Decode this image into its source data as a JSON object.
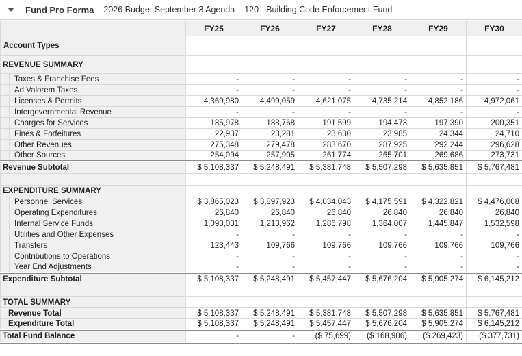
{
  "header": {
    "caret_icon": "dropdown-caret",
    "title": "Fund Pro Forma",
    "subtitle_budget": "2026 Budget September 3 Agenda",
    "subtitle_fund": "120 - Building Code Enforcement Fund"
  },
  "colors": {
    "label_column_bg": "#f0f0f0",
    "header_row_bg": "#f0f0f0",
    "cell_border": "#d9d9d9",
    "double_border": "#8c8c8c",
    "text": "#222222"
  },
  "table": {
    "columns": [
      "FY25",
      "FY26",
      "FY27",
      "FY28",
      "FY29",
      "FY30"
    ],
    "rows": [
      {
        "label": "Account Types",
        "type": "section-tall",
        "values": [
          "",
          "",
          "",
          "",
          "",
          ""
        ]
      },
      {
        "label": "REVENUE SUMMARY",
        "type": "section-big",
        "values": [
          "",
          "",
          "",
          "",
          "",
          ""
        ]
      },
      {
        "label": "Taxes & Franchise Fees",
        "type": "detail",
        "values": [
          "-",
          "-",
          "-",
          "-",
          "-",
          "-"
        ]
      },
      {
        "label": "Ad Valorem Taxes",
        "type": "detail",
        "values": [
          "-",
          "-",
          "-",
          "-",
          "-",
          "-"
        ]
      },
      {
        "label": "Licenses & Permits",
        "type": "detail",
        "values": [
          "4,369,980",
          "4,499,059",
          "4,621,075",
          "4,735,214",
          "4,852,186",
          "4,972,061"
        ]
      },
      {
        "label": "Intergovernmental Revenue",
        "type": "detail",
        "values": [
          "-",
          "-",
          "-",
          "-",
          "-",
          "-"
        ]
      },
      {
        "label": "Charges for Services",
        "type": "detail",
        "values": [
          "185,978",
          "188,768",
          "191,599",
          "194,473",
          "197,390",
          "200,351"
        ]
      },
      {
        "label": "Fines & Forfeitures",
        "type": "detail",
        "values": [
          "22,937",
          "23,281",
          "23,630",
          "23,985",
          "24,344",
          "24,710"
        ]
      },
      {
        "label": "Other Revenues",
        "type": "detail",
        "values": [
          "275,348",
          "279,478",
          "283,670",
          "287,925",
          "292,244",
          "296,628"
        ]
      },
      {
        "label": "Other Sources",
        "type": "detail",
        "values": [
          "254,094",
          "257,905",
          "261,774",
          "265,701",
          "269,686",
          "273,731"
        ]
      },
      {
        "label": "Revenue Subtotal",
        "type": "subtotal",
        "values": [
          "$ 5,108,337",
          "$ 5,248,491",
          "$ 5,381,748",
          "$ 5,507,298",
          "$ 5,635,851",
          "$ 5,767,481"
        ]
      },
      {
        "label": "",
        "type": "spacer",
        "values": [
          "",
          "",
          "",
          "",
          "",
          ""
        ]
      },
      {
        "label": "EXPENDITURE SUMMARY",
        "type": "section",
        "values": [
          "",
          "",
          "",
          "",
          "",
          ""
        ]
      },
      {
        "label": "Personnel Services",
        "type": "detail",
        "values": [
          "$ 3,865,023",
          "$ 3,897,923",
          "$ 4,034,043",
          "$ 4,175,591",
          "$ 4,322,821",
          "$ 4,476,008"
        ]
      },
      {
        "label": "Operating Expenditures",
        "type": "detail",
        "values": [
          "26,840",
          "26,840",
          "26,840",
          "26,840",
          "26,840",
          "26,840"
        ]
      },
      {
        "label": "Internal Service Funds",
        "type": "detail",
        "values": [
          "1,093,031",
          "1,213,962",
          "1,286,798",
          "1,364,007",
          "1,445,847",
          "1,532,598"
        ]
      },
      {
        "label": "Utilities and Other Expenses",
        "type": "detail",
        "values": [
          "-",
          "-",
          "-",
          "-",
          "-",
          "-"
        ]
      },
      {
        "label": "Transfers",
        "type": "detail",
        "values": [
          "123,443",
          "109,766",
          "109,766",
          "109,766",
          "109,766",
          "109,766"
        ]
      },
      {
        "label": "Contributions to Operations",
        "type": "detail",
        "values": [
          "-",
          "-",
          "-",
          "-",
          "-",
          "-"
        ]
      },
      {
        "label": "Year End Adjustments",
        "type": "detail",
        "values": [
          "-",
          "-",
          "-",
          "-",
          "-",
          "-"
        ]
      },
      {
        "label": "Expenditure Subtotal",
        "type": "subtotal",
        "values": [
          "$ 5,108,337",
          "$ 5,248,491",
          "$ 5,457,447",
          "$ 5,676,204",
          "$ 5,905,274",
          "$ 6,145,212"
        ]
      },
      {
        "label": "",
        "type": "spacer",
        "values": [
          "",
          "",
          "",
          "",
          "",
          ""
        ]
      },
      {
        "label": "TOTAL SUMMARY",
        "type": "section",
        "values": [
          "",
          "",
          "",
          "",
          "",
          ""
        ]
      },
      {
        "label": "Revenue Total",
        "type": "total",
        "values": [
          "$ 5,108,337",
          "$ 5,248,491",
          "$ 5,381,748",
          "$ 5,507,298",
          "$ 5,635,851",
          "$ 5,767,481"
        ]
      },
      {
        "label": "Expenditure Total",
        "type": "total",
        "values": [
          "$ 5,108,337",
          "$ 5,248,491",
          "$ 5,457,447",
          "$ 5,676,204",
          "$ 5,905,274",
          "$ 6,145,212"
        ]
      },
      {
        "label": "Total Fund Balance",
        "type": "grand",
        "values": [
          "-",
          "-",
          "($ 75,699)",
          "($ 168,906)",
          "($ 269,423)",
          "($ 377,731)"
        ]
      }
    ]
  }
}
